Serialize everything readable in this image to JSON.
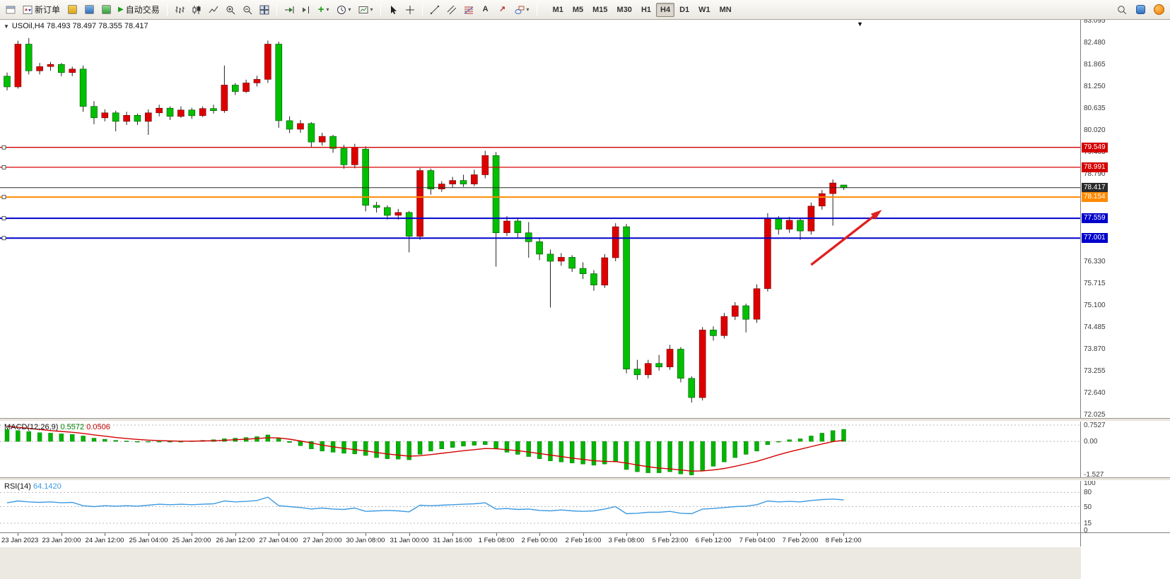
{
  "toolbar": {
    "new_order": "新订单",
    "auto_trading": "自动交易",
    "timeframes": [
      "M1",
      "M5",
      "M15",
      "M30",
      "H1",
      "H4",
      "D1",
      "W1",
      "MN"
    ],
    "active_timeframe": "H4"
  },
  "icons": {
    "play": "▶",
    "plus": "+",
    "caret": "▾",
    "collapse": "▼",
    "chart_shift": "▼",
    "text_tool": "A",
    "arrow_tool": "↗"
  },
  "colors": {
    "up": "#dd0000",
    "down": "#00c000",
    "macd_hist": "#00b400",
    "macd_signal": "#d40000",
    "rsi_line": "#3d9ae1",
    "arrow": "#e02020",
    "resistance": "#d40000",
    "support": "#0000cc",
    "level": "#ff8a00",
    "current": "#2a2a2a"
  },
  "chart": {
    "title": "USOil,H4 78.493 78.497 78.355 78.417",
    "symbol": "USOil",
    "period": "H4",
    "price_max": 83.095,
    "price_min": 72.025,
    "y_ticks": [
      "83.095",
      "82.480",
      "81.865",
      "81.250",
      "80.635",
      "80.020",
      "79.405",
      "78.790",
      "76.330",
      "75.715",
      "75.100",
      "74.485",
      "73.870",
      "73.255",
      "72.640",
      "72.025"
    ],
    "badges": [
      {
        "label": "79.549",
        "price": 79.549,
        "color": "#d40000",
        "kind": "resistance"
      },
      {
        "label": "78.991",
        "price": 78.991,
        "color": "#d40000",
        "kind": "resistance"
      },
      {
        "label": "78.417",
        "price": 78.417,
        "color": "#2a2a2a",
        "kind": "current-price"
      },
      {
        "label": "78.154",
        "price": 78.154,
        "color": "#ff8a00",
        "kind": "level"
      },
      {
        "label": "77.559",
        "price": 77.559,
        "color": "#0000cc",
        "kind": "support"
      },
      {
        "label": "77.001",
        "price": 77.001,
        "color": "#0000cc",
        "kind": "support"
      }
    ],
    "x_ticks": [
      "23 Jan 2023",
      "23 Jan 20:00",
      "24 Jan 12:00",
      "25 Jan 04:00",
      "25 Jan 20:00",
      "26 Jan 12:00",
      "27 Jan 04:00",
      "27 Jan 20:00",
      "30 Jan 08:00",
      "31 Jan 00:00",
      "31 Jan 16:00",
      "1 Feb 08:00",
      "2 Feb 00:00",
      "2 Feb 16:00",
      "3 Feb 08:00",
      "5 Feb 23:00",
      "6 Feb 12:00",
      "7 Feb 04:00",
      "7 Feb 20:00",
      "8 Feb 12:00"
    ]
  },
  "macd": {
    "name": "MACD(12,26,9)",
    "value_main": "0.5572",
    "value_signal": "0.0506",
    "scale_top": "0.7527",
    "scale_zero": "0.00",
    "scale_bottom": "-1.527",
    "max": 0.7527,
    "min": -1.527
  },
  "rsi": {
    "name": "RSI(14)",
    "value": "64.1420",
    "levels": [
      "100",
      "80",
      "50",
      "15",
      "0"
    ],
    "level_values": [
      100,
      80,
      50,
      15,
      0
    ]
  },
  "chart_data": {
    "type": "candlestick",
    "symbol": "USOil",
    "timeframe": "H4",
    "up_color_meaning": "red = bullish, green = bearish",
    "bars_per_label": 4,
    "first_label_bar": 1,
    "ohlc": [
      [
        81.55,
        81.65,
        81.15,
        81.25
      ],
      [
        81.25,
        82.55,
        81.2,
        82.45
      ],
      [
        82.45,
        82.62,
        81.6,
        81.7
      ],
      [
        81.7,
        81.92,
        81.6,
        81.82
      ],
      [
        81.82,
        81.95,
        81.7,
        81.88
      ],
      [
        81.88,
        81.92,
        81.55,
        81.65
      ],
      [
        81.65,
        81.82,
        81.55,
        81.75
      ],
      [
        81.75,
        81.85,
        80.55,
        80.7
      ],
      [
        80.7,
        80.85,
        80.2,
        80.38
      ],
      [
        80.38,
        80.62,
        80.28,
        80.52
      ],
      [
        80.52,
        80.58,
        80.0,
        80.28
      ],
      [
        80.28,
        80.55,
        80.18,
        80.45
      ],
      [
        80.45,
        80.5,
        80.18,
        80.28
      ],
      [
        80.28,
        80.62,
        79.9,
        80.52
      ],
      [
        80.52,
        80.75,
        80.42,
        80.65
      ],
      [
        80.65,
        80.7,
        80.32,
        80.42
      ],
      [
        80.42,
        80.7,
        80.38,
        80.6
      ],
      [
        80.6,
        80.66,
        80.35,
        80.44
      ],
      [
        80.44,
        80.7,
        80.4,
        80.64
      ],
      [
        80.64,
        80.75,
        80.5,
        80.58
      ],
      [
        80.58,
        81.85,
        80.52,
        81.3
      ],
      [
        81.3,
        81.36,
        81.02,
        81.12
      ],
      [
        81.12,
        81.45,
        81.08,
        81.36
      ],
      [
        81.36,
        81.56,
        81.26,
        81.46
      ],
      [
        81.46,
        82.55,
        81.36,
        82.45
      ],
      [
        82.45,
        82.52,
        80.1,
        80.3
      ],
      [
        80.3,
        80.42,
        79.95,
        80.06
      ],
      [
        80.06,
        80.32,
        79.96,
        80.22
      ],
      [
        80.22,
        80.26,
        79.55,
        79.7
      ],
      [
        79.7,
        79.96,
        79.6,
        79.86
      ],
      [
        79.86,
        79.9,
        79.4,
        79.52
      ],
      [
        79.52,
        79.62,
        78.95,
        79.06
      ],
      [
        79.06,
        79.65,
        78.96,
        79.55
      ],
      [
        79.5,
        79.58,
        77.75,
        77.92
      ],
      [
        77.92,
        78.02,
        77.72,
        77.86
      ],
      [
        77.86,
        77.92,
        77.52,
        77.64
      ],
      [
        77.64,
        77.82,
        77.52,
        77.72
      ],
      [
        77.72,
        77.76,
        76.6,
        77.05
      ],
      [
        77.05,
        78.97,
        76.95,
        78.9
      ],
      [
        78.9,
        78.95,
        78.22,
        78.38
      ],
      [
        78.38,
        78.6,
        78.3,
        78.52
      ],
      [
        78.52,
        78.72,
        78.42,
        78.62
      ],
      [
        78.62,
        78.78,
        78.44,
        78.52
      ],
      [
        78.52,
        78.92,
        78.46,
        78.78
      ],
      [
        78.78,
        79.45,
        78.68,
        79.32
      ],
      [
        79.32,
        79.42,
        76.2,
        77.15
      ],
      [
        77.15,
        77.62,
        77.06,
        77.48
      ],
      [
        77.48,
        77.55,
        77.02,
        77.15
      ],
      [
        77.15,
        77.45,
        76.45,
        76.9
      ],
      [
        76.9,
        77.02,
        76.38,
        76.55
      ],
      [
        76.55,
        76.68,
        75.05,
        76.35
      ],
      [
        76.35,
        76.58,
        76.22,
        76.46
      ],
      [
        76.46,
        76.52,
        76.05,
        76.15
      ],
      [
        76.15,
        76.32,
        75.85,
        76.0
      ],
      [
        76.0,
        76.1,
        75.52,
        75.68
      ],
      [
        75.68,
        76.55,
        75.6,
        76.45
      ],
      [
        76.45,
        77.42,
        76.35,
        77.32
      ],
      [
        77.32,
        77.4,
        73.2,
        73.32
      ],
      [
        73.32,
        73.58,
        73.02,
        73.16
      ],
      [
        73.16,
        73.58,
        73.06,
        73.48
      ],
      [
        73.48,
        73.72,
        73.28,
        73.38
      ],
      [
        73.38,
        74.0,
        73.3,
        73.88
      ],
      [
        73.88,
        73.94,
        72.95,
        73.06
      ],
      [
        73.06,
        73.12,
        72.38,
        72.52
      ],
      [
        72.52,
        74.5,
        72.44,
        74.42
      ],
      [
        74.42,
        74.52,
        74.12,
        74.26
      ],
      [
        74.26,
        74.9,
        74.18,
        74.8
      ],
      [
        74.8,
        75.2,
        74.7,
        75.1
      ],
      [
        75.1,
        75.16,
        74.35,
        74.72
      ],
      [
        74.72,
        75.7,
        74.62,
        75.58
      ],
      [
        75.58,
        77.7,
        75.5,
        77.55
      ],
      [
        77.55,
        77.62,
        77.1,
        77.25
      ],
      [
        77.25,
        77.6,
        77.15,
        77.5
      ],
      [
        77.5,
        77.56,
        76.95,
        77.2
      ],
      [
        77.2,
        78.0,
        77.1,
        77.9
      ],
      [
        77.9,
        78.35,
        77.8,
        78.25
      ],
      [
        78.25,
        78.65,
        77.35,
        78.55
      ],
      [
        78.493,
        78.497,
        78.355,
        78.417
      ]
    ],
    "macd_histogram": [
      0.55,
      0.5,
      0.45,
      0.4,
      0.38,
      0.35,
      0.32,
      0.25,
      0.15,
      0.1,
      0.05,
      0.02,
      0.0,
      -0.02,
      -0.03,
      -0.02,
      0.0,
      0.02,
      0.05,
      0.08,
      0.12,
      0.15,
      0.18,
      0.22,
      0.3,
      0.15,
      -0.05,
      -0.2,
      -0.35,
      -0.45,
      -0.5,
      -0.55,
      -0.58,
      -0.65,
      -0.75,
      -0.8,
      -0.82,
      -0.85,
      -0.6,
      -0.45,
      -0.35,
      -0.28,
      -0.22,
      -0.18,
      -0.15,
      -0.35,
      -0.5,
      -0.6,
      -0.7,
      -0.8,
      -0.9,
      -0.95,
      -1.0,
      -1.05,
      -1.1,
      -1.05,
      -0.95,
      -1.3,
      -1.4,
      -1.45,
      -1.45,
      -1.4,
      -1.5,
      -1.55,
      -1.35,
      -1.15,
      -0.95,
      -0.75,
      -0.6,
      -0.45,
      -0.15,
      0.0,
      0.08,
      0.12,
      0.25,
      0.38,
      0.5,
      0.5572
    ],
    "macd_signal": [
      0.7,
      0.65,
      0.6,
      0.55,
      0.5,
      0.46,
      0.42,
      0.37,
      0.3,
      0.24,
      0.18,
      0.13,
      0.09,
      0.06,
      0.04,
      0.02,
      0.01,
      0.01,
      0.02,
      0.03,
      0.05,
      0.08,
      0.1,
      0.13,
      0.17,
      0.16,
      0.1,
      0.02,
      -0.07,
      -0.17,
      -0.25,
      -0.32,
      -0.38,
      -0.44,
      -0.51,
      -0.58,
      -0.63,
      -0.68,
      -0.66,
      -0.61,
      -0.55,
      -0.49,
      -0.43,
      -0.38,
      -0.33,
      -0.34,
      -0.38,
      -0.43,
      -0.49,
      -0.56,
      -0.63,
      -0.7,
      -0.77,
      -0.83,
      -0.89,
      -0.92,
      -0.93,
      -1.0,
      -1.09,
      -1.17,
      -1.23,
      -1.27,
      -1.32,
      -1.37,
      -1.36,
      -1.32,
      -1.25,
      -1.15,
      -1.04,
      -0.92,
      -0.77,
      -0.62,
      -0.48,
      -0.36,
      -0.24,
      -0.12,
      -0.01,
      0.0506
    ],
    "rsi": [
      58,
      62,
      60,
      59,
      60,
      58,
      59,
      52,
      50,
      52,
      51,
      52,
      51,
      53,
      55,
      54,
      55,
      54,
      55,
      56,
      62,
      60,
      61,
      63,
      70,
      52,
      50,
      48,
      45,
      47,
      45,
      44,
      47,
      40,
      41,
      42,
      41,
      39,
      53,
      52,
      53,
      54,
      55,
      56,
      58,
      45,
      46,
      44,
      45,
      42,
      41,
      43,
      41,
      40,
      41,
      45,
      50,
      35,
      36,
      38,
      38,
      40,
      36,
      35,
      45,
      46,
      48,
      50,
      51,
      54,
      62,
      60,
      61,
      60,
      63,
      65,
      66,
      64.14
    ],
    "annotation_arrow": {
      "color": "#e02020",
      "from": {
        "bar": 74,
        "price": 76.25
      },
      "to": {
        "bar": 80.2,
        "price": 77.72
      }
    }
  }
}
